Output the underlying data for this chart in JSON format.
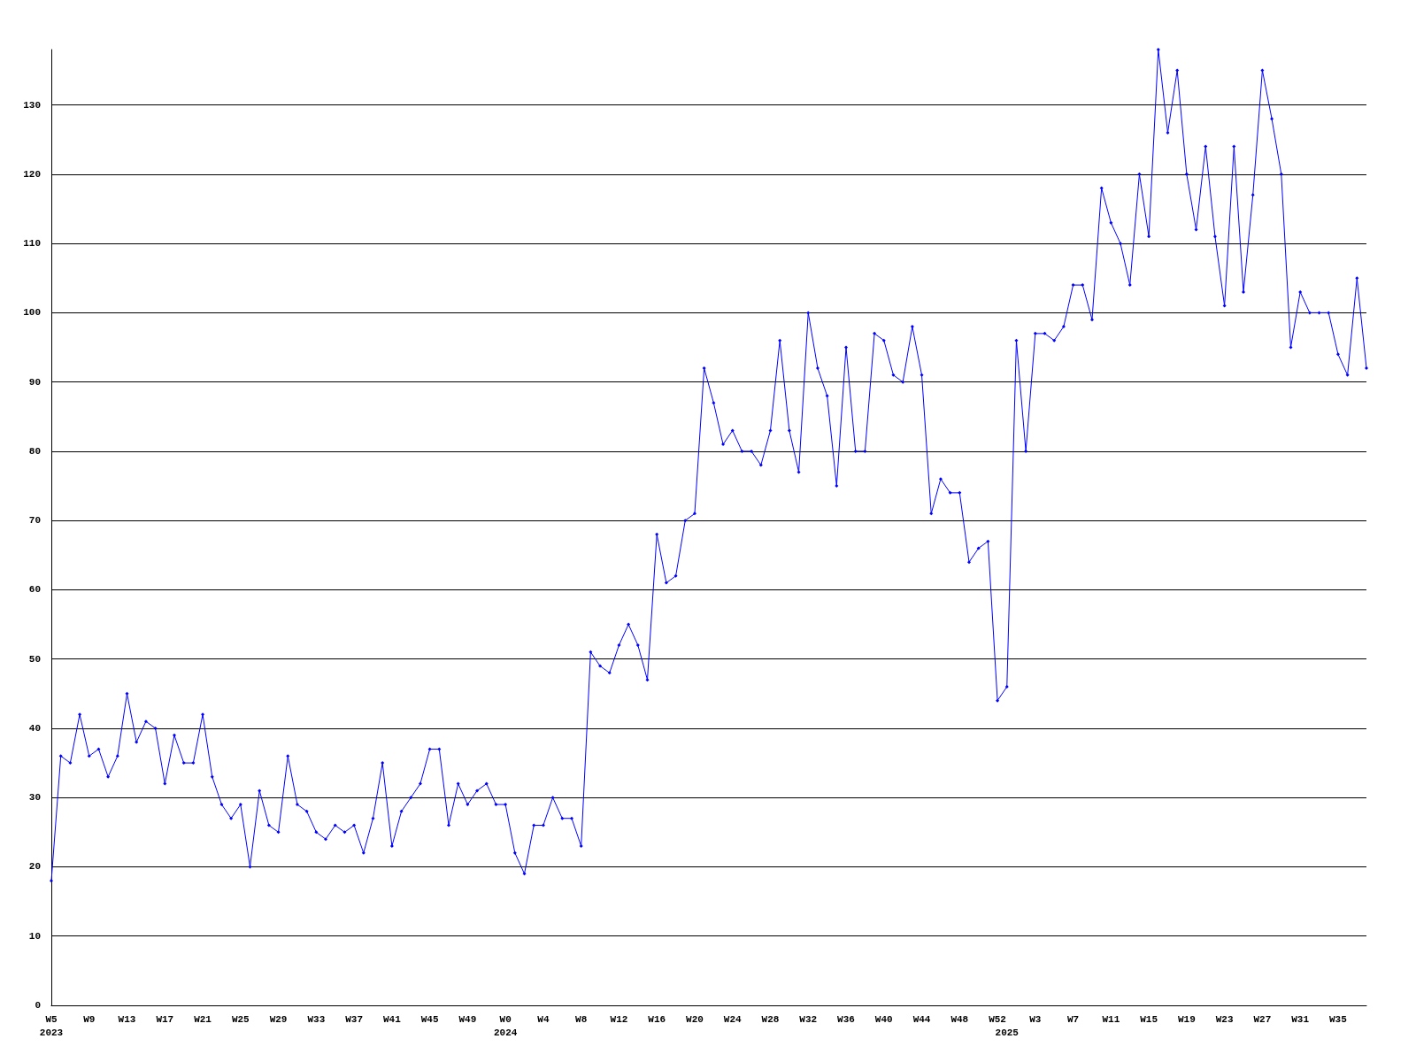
{
  "chart_data": {
    "type": "line",
    "color": "#0000ff",
    "marker": "diamond",
    "grid": "y",
    "categories": [
      "W5\n2023",
      null,
      null,
      null,
      "W9",
      null,
      null,
      null,
      "W13",
      null,
      null,
      null,
      "W17",
      null,
      null,
      null,
      "W21",
      null,
      null,
      null,
      "W25",
      null,
      null,
      null,
      "W29",
      null,
      null,
      null,
      "W33",
      null,
      null,
      null,
      "W37",
      null,
      null,
      null,
      "W41",
      null,
      null,
      null,
      "W45",
      null,
      null,
      null,
      "W49",
      null,
      null,
      null,
      "W0\n2024",
      null,
      null,
      null,
      "W4",
      null,
      null,
      null,
      "W8",
      null,
      null,
      null,
      "W12",
      null,
      null,
      null,
      "W16",
      null,
      null,
      null,
      "W20",
      null,
      null,
      null,
      "W24",
      null,
      null,
      null,
      "W28",
      null,
      null,
      null,
      "W32",
      null,
      null,
      null,
      "W36",
      null,
      null,
      null,
      "W40",
      null,
      null,
      null,
      "W44",
      null,
      null,
      null,
      "W48",
      null,
      null,
      null,
      "W52",
      "\n2025",
      null,
      null,
      "W3",
      null,
      null,
      null,
      "W7",
      null,
      null,
      null,
      "W11",
      null,
      null,
      null,
      "W15",
      null,
      null,
      null,
      "W19",
      null,
      null,
      null,
      "W23",
      null,
      null,
      null,
      "W27",
      null,
      null,
      null,
      "W31",
      null,
      null,
      null,
      "W35",
      null,
      null,
      null
    ],
    "values": [
      18,
      36,
      35,
      42,
      36,
      37,
      33,
      36,
      45,
      38,
      41,
      40,
      32,
      39,
      35,
      35,
      42,
      33,
      29,
      27,
      29,
      20,
      31,
      26,
      25,
      36,
      29,
      28,
      25,
      24,
      26,
      25,
      26,
      22,
      27,
      35,
      23,
      28,
      30,
      32,
      37,
      37,
      26,
      32,
      29,
      31,
      32,
      29,
      29,
      22,
      19,
      26,
      26,
      30,
      27,
      27,
      23,
      51,
      49,
      48,
      52,
      55,
      52,
      47,
      68,
      61,
      62,
      70,
      71,
      92,
      87,
      81,
      83,
      80,
      80,
      78,
      83,
      96,
      83,
      77,
      100,
      92,
      88,
      75,
      95,
      80,
      80,
      97,
      96,
      91,
      90,
      98,
      91,
      71,
      76,
      74,
      74,
      64,
      66,
      67,
      44,
      46,
      96,
      80,
      97,
      97,
      96,
      98,
      104,
      104,
      99,
      118,
      113,
      110,
      104,
      120,
      111,
      138,
      126,
      135,
      120,
      112,
      124,
      111,
      101,
      124,
      103,
      117,
      135,
      128,
      120,
      95,
      103,
      100,
      100,
      100,
      94,
      91,
      105,
      92
    ],
    "ylim": [
      0,
      138
    ],
    "yticks": [
      0,
      10,
      20,
      30,
      40,
      50,
      60,
      70,
      80,
      90,
      100,
      110,
      120,
      130
    ]
  }
}
